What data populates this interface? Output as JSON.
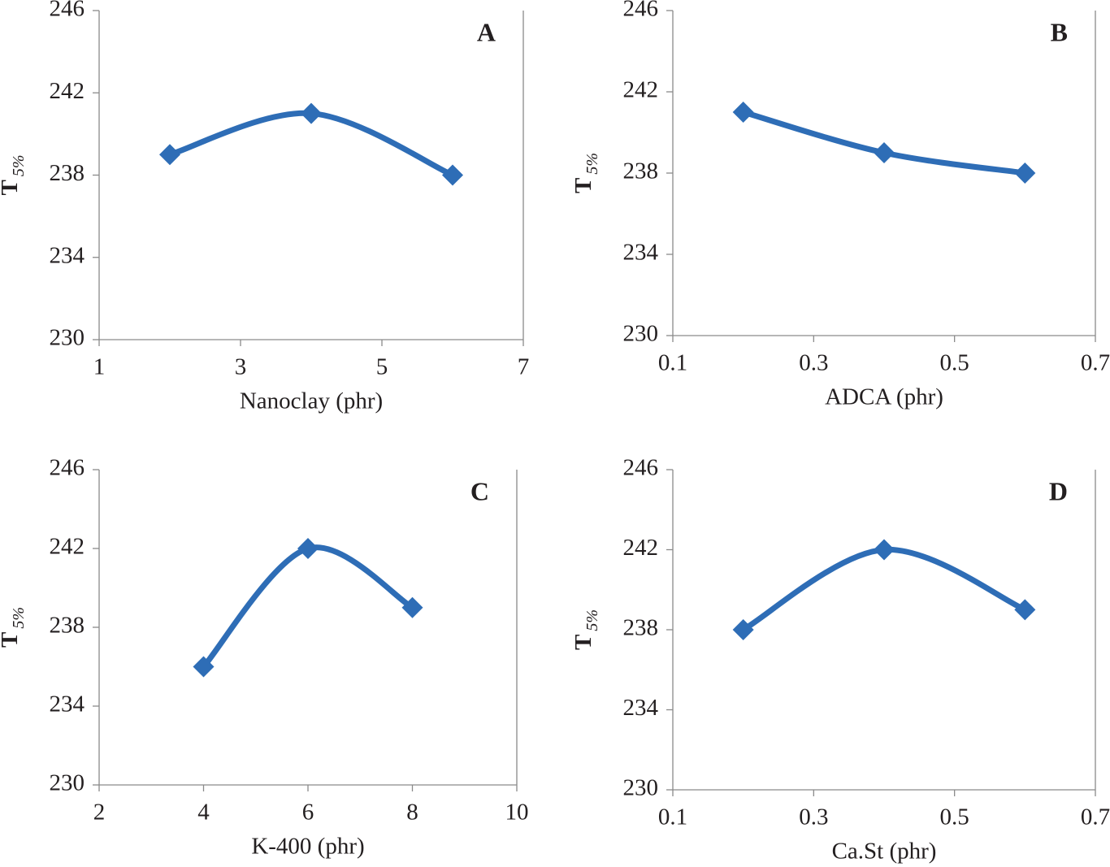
{
  "chart_data": [
    {
      "type": "line",
      "annotation": "A",
      "xlabel": "Nanoclay (phr)",
      "ylabel": {
        "main": "T",
        "subscript": "5%"
      },
      "x": [
        2,
        4,
        6
      ],
      "values": [
        239,
        241,
        238
      ],
      "color": "#2e6db6",
      "xlim": [
        1,
        7
      ],
      "xticks": [
        1,
        3,
        5,
        7
      ],
      "ylim": [
        230,
        246
      ],
      "yticks": [
        230,
        234,
        238,
        242,
        246
      ]
    },
    {
      "type": "line",
      "annotation": "B",
      "xlabel": "ADCA (phr)",
      "ylabel": {
        "main": "T",
        "subscript": "5%"
      },
      "x": [
        0.2,
        0.4,
        0.6
      ],
      "values": [
        241,
        239,
        238
      ],
      "color": "#2e6db6",
      "xlim": [
        0.1,
        0.7
      ],
      "xticks": [
        0.1,
        0.3,
        0.5,
        0.7
      ],
      "ylim": [
        230,
        246
      ],
      "yticks": [
        230,
        234,
        238,
        242,
        246
      ]
    },
    {
      "type": "line",
      "annotation": "C",
      "xlabel": "K-400 (phr)",
      "ylabel": {
        "main": "T",
        "subscript": "5%"
      },
      "x": [
        4,
        6,
        8
      ],
      "values": [
        236,
        242,
        239
      ],
      "color": "#2e6db6",
      "xlim": [
        2,
        10
      ],
      "xticks": [
        2,
        4,
        6,
        8,
        10
      ],
      "ylim": [
        230,
        246
      ],
      "yticks": [
        230,
        234,
        238,
        242,
        246
      ]
    },
    {
      "type": "line",
      "annotation": "D",
      "xlabel": "Ca.St (phr)",
      "ylabel": {
        "main": "T",
        "subscript": "5%"
      },
      "x": [
        0.2,
        0.4,
        0.6
      ],
      "values": [
        238,
        242,
        239
      ],
      "color": "#2e6db6",
      "xlim": [
        0.1,
        0.7
      ],
      "xticks": [
        0.1,
        0.3,
        0.5,
        0.7
      ],
      "ylim": [
        230,
        246
      ],
      "yticks": [
        230,
        234,
        238,
        242,
        246
      ]
    }
  ]
}
